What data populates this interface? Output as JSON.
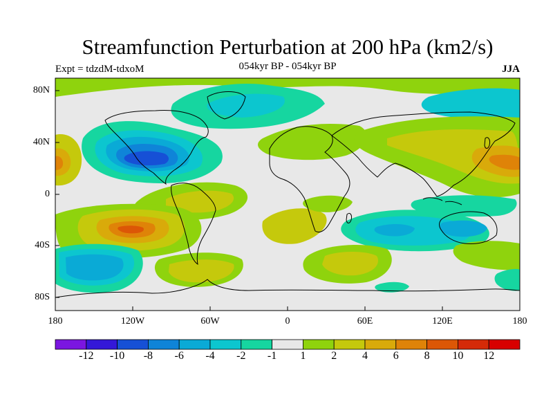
{
  "title": "Streamfunction Perturbation at 200 hPa (km2/s)",
  "left_subtitle": "Expt = tdzdM-tdxoM",
  "center_subtitle": "054kyr BP - 054kyr BP",
  "right_subtitle": "JJA",
  "lat_ticks": [
    "80N",
    "40N",
    "0",
    "40S",
    "80S"
  ],
  "lon_ticks": [
    "180",
    "120W",
    "60W",
    "0",
    "60E",
    "120E",
    "180"
  ],
  "colorbar": {
    "labels": [
      "-12",
      "-10",
      "-8",
      "-6",
      "-4",
      "-2",
      "-1",
      "1",
      "2",
      "4",
      "6",
      "8",
      "10",
      "12"
    ],
    "colors": [
      "#7b16e0",
      "#3418d8",
      "#1650d6",
      "#0f84d8",
      "#0aaad6",
      "#0cc6cf",
      "#16d6a0",
      "#e8e8e8",
      "#8fd30d",
      "#c5c90c",
      "#d9aa0a",
      "#df8308",
      "#dc5706",
      "#d52a08",
      "#d80000"
    ]
  }
}
